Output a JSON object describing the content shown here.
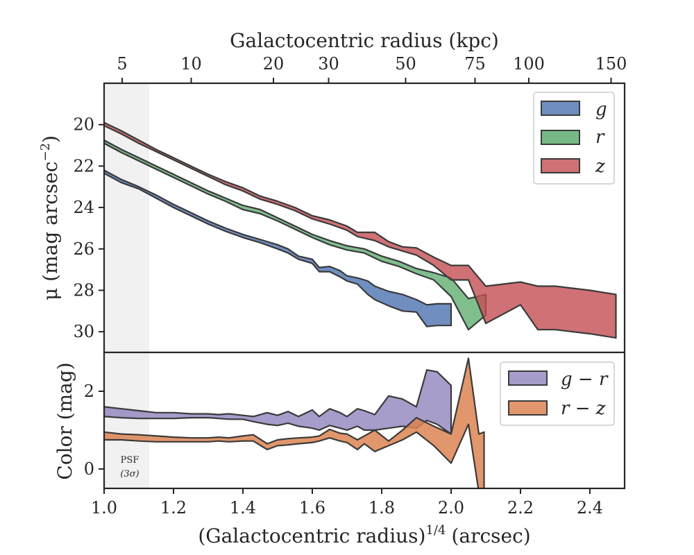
{
  "chart_data": [
    {
      "type": "area",
      "panel": "top",
      "xlabel": "(Galactocentric radius)$^{1/4}$ (arcsec)",
      "ylabel": "$\\mu$ (mag arcsec$^{-2}$)",
      "top_xlabel": "Galactocentric radius (kpc)",
      "top_xticks": [
        {
          "value": 5,
          "label": "5",
          "x": 1.052
        },
        {
          "value": 10,
          "label": "10",
          "x": 1.251
        },
        {
          "value": 20,
          "label": "20",
          "x": 1.488
        },
        {
          "value": 30,
          "label": "30",
          "x": 1.647
        },
        {
          "value": 50,
          "label": "50",
          "x": 1.869
        },
        {
          "value": 75,
          "label": "75",
          "x": 2.069
        },
        {
          "value": 100,
          "label": "100",
          "x": 2.224
        },
        {
          "value": 150,
          "label": "150",
          "x": 2.461
        }
      ],
      "xlim": [
        1.0,
        2.5
      ],
      "ylim": [
        31.0,
        18.0
      ],
      "y_inverted": true,
      "yticks": [
        20,
        22,
        24,
        26,
        28,
        30
      ],
      "xticks": [
        1.0,
        1.2,
        1.4,
        1.6,
        1.8,
        2.0,
        2.2,
        2.4
      ],
      "xtick_labels": [
        "1.0",
        "1.2",
        "1.4",
        "1.6",
        "1.8",
        "2.0",
        "2.2",
        "2.4"
      ],
      "shaded_region": {
        "x": [
          1.0,
          1.13
        ],
        "label": "PSF (3σ)",
        "color": "#f0f0f0"
      },
      "legend_location": "top-right",
      "series": [
        {
          "name": "g",
          "color": "#4c72b0",
          "x": [
            1.0,
            1.05,
            1.1,
            1.15,
            1.2,
            1.25,
            1.3,
            1.35,
            1.4,
            1.45,
            1.5,
            1.53,
            1.56,
            1.6,
            1.62,
            1.65,
            1.68,
            1.7,
            1.73,
            1.76,
            1.78,
            1.82,
            1.86,
            1.9,
            1.93,
            1.96,
            2.0
          ],
          "lower": [
            22.2,
            22.65,
            23.0,
            23.4,
            23.85,
            24.25,
            24.65,
            25.0,
            25.3,
            25.55,
            25.8,
            26.0,
            26.35,
            26.5,
            26.9,
            26.85,
            27.05,
            27.3,
            27.4,
            27.55,
            27.8,
            28.05,
            28.2,
            28.45,
            28.7,
            28.65,
            28.65
          ],
          "upper": [
            22.35,
            22.8,
            23.1,
            23.55,
            24.0,
            24.4,
            24.8,
            25.15,
            25.45,
            25.7,
            26.0,
            26.2,
            26.5,
            26.7,
            27.1,
            27.1,
            27.35,
            27.55,
            27.7,
            28.2,
            28.45,
            28.75,
            29.0,
            29.05,
            29.75,
            29.7,
            29.7
          ]
        },
        {
          "name": "r",
          "color": "#55a868",
          "x": [
            1.0,
            1.05,
            1.1,
            1.15,
            1.2,
            1.25,
            1.3,
            1.35,
            1.4,
            1.45,
            1.5,
            1.55,
            1.6,
            1.65,
            1.7,
            1.75,
            1.8,
            1.85,
            1.9,
            1.95,
            2.0,
            2.05,
            2.1
          ],
          "lower": [
            20.75,
            21.2,
            21.6,
            22.0,
            22.4,
            22.8,
            23.2,
            23.55,
            23.9,
            24.1,
            24.5,
            24.9,
            25.3,
            25.6,
            25.85,
            26.0,
            26.35,
            26.6,
            26.95,
            27.15,
            27.4,
            28.4,
            28.2
          ],
          "upper": [
            20.9,
            21.35,
            21.75,
            22.15,
            22.55,
            22.95,
            23.35,
            23.7,
            24.1,
            24.3,
            24.65,
            25.05,
            25.45,
            25.8,
            26.05,
            26.2,
            26.6,
            26.85,
            27.2,
            27.5,
            28.3,
            29.9,
            29.2
          ]
        },
        {
          "name": "z",
          "color": "#c44e52",
          "x": [
            1.0,
            1.05,
            1.1,
            1.15,
            1.2,
            1.25,
            1.3,
            1.35,
            1.4,
            1.45,
            1.5,
            1.55,
            1.6,
            1.65,
            1.7,
            1.73,
            1.78,
            1.82,
            1.86,
            1.9,
            1.95,
            2.0,
            2.05,
            2.1,
            2.2,
            2.25,
            2.3,
            2.4,
            2.475
          ],
          "lower": [
            19.9,
            20.3,
            20.75,
            21.2,
            21.6,
            22.0,
            22.4,
            22.75,
            23.05,
            23.45,
            23.7,
            24.0,
            24.4,
            24.6,
            24.9,
            25.2,
            25.2,
            25.65,
            25.9,
            25.95,
            26.4,
            26.8,
            26.8,
            27.8,
            27.6,
            27.8,
            27.8,
            28.0,
            28.2
          ],
          "upper": [
            20.05,
            20.45,
            20.9,
            21.3,
            21.7,
            22.1,
            22.5,
            22.9,
            23.2,
            23.6,
            23.85,
            24.15,
            24.55,
            24.8,
            25.1,
            25.4,
            25.6,
            25.9,
            26.1,
            26.3,
            26.8,
            27.5,
            27.5,
            29.6,
            28.7,
            29.9,
            29.9,
            30.1,
            30.3
          ]
        }
      ]
    },
    {
      "type": "area",
      "panel": "bottom",
      "xlabel": "(Galactocentric radius)$^{1/4}$ (arcsec)",
      "ylabel": "Color (mag)",
      "xlim": [
        1.0,
        2.5
      ],
      "ylim": [
        -0.5,
        3.0
      ],
      "yticks": [
        0,
        2
      ],
      "xticks": [
        1.0,
        1.2,
        1.4,
        1.6,
        1.8,
        2.0,
        2.2,
        2.4
      ],
      "xtick_labels": [
        "1.0",
        "1.2",
        "1.4",
        "1.6",
        "1.8",
        "2.0",
        "2.2",
        "2.4"
      ],
      "legend_location": "top-right",
      "series": [
        {
          "name": "g - r",
          "color": "#8172b3",
          "x": [
            1.0,
            1.05,
            1.1,
            1.15,
            1.2,
            1.25,
            1.3,
            1.33,
            1.36,
            1.4,
            1.43,
            1.47,
            1.5,
            1.53,
            1.56,
            1.6,
            1.62,
            1.65,
            1.68,
            1.7,
            1.73,
            1.75,
            1.78,
            1.82,
            1.86,
            1.9,
            1.93,
            1.96,
            2.0
          ],
          "lower": [
            1.35,
            1.32,
            1.3,
            1.3,
            1.3,
            1.32,
            1.32,
            1.3,
            1.28,
            1.28,
            1.22,
            1.15,
            1.12,
            1.18,
            1.1,
            1.05,
            1.0,
            1.12,
            1.05,
            1.0,
            1.1,
            1.0,
            1.0,
            1.05,
            1.1,
            1.05,
            1.25,
            1.15,
            0.9
          ],
          "upper": [
            1.6,
            1.55,
            1.5,
            1.45,
            1.45,
            1.42,
            1.42,
            1.4,
            1.42,
            1.38,
            1.35,
            1.45,
            1.38,
            1.48,
            1.35,
            1.52,
            1.35,
            1.55,
            1.45,
            1.35,
            1.55,
            1.5,
            1.4,
            1.88,
            1.8,
            1.6,
            2.55,
            2.5,
            2.15
          ]
        },
        {
          "name": "r - z",
          "color": "#dd8452",
          "x": [
            1.0,
            1.05,
            1.1,
            1.15,
            1.2,
            1.25,
            1.3,
            1.33,
            1.36,
            1.4,
            1.43,
            1.47,
            1.5,
            1.53,
            1.56,
            1.6,
            1.62,
            1.65,
            1.68,
            1.7,
            1.73,
            1.75,
            1.78,
            1.82,
            1.86,
            1.9,
            1.95,
            2.0,
            2.05,
            2.08,
            2.095
          ],
          "lower": [
            0.75,
            0.75,
            0.72,
            0.7,
            0.7,
            0.7,
            0.7,
            0.72,
            0.7,
            0.72,
            0.72,
            0.5,
            0.6,
            0.62,
            0.65,
            0.68,
            0.72,
            0.8,
            0.72,
            0.68,
            0.5,
            0.65,
            0.45,
            0.6,
            0.75,
            0.95,
            0.6,
            0.15,
            1.15,
            -0.6,
            -0.6
          ],
          "upper": [
            0.95,
            0.9,
            0.88,
            0.85,
            0.82,
            0.8,
            0.8,
            0.82,
            0.8,
            0.85,
            0.88,
            0.65,
            0.75,
            0.78,
            0.8,
            0.82,
            0.85,
            1.02,
            0.92,
            0.9,
            0.75,
            0.85,
            1.0,
            0.72,
            1.0,
            1.32,
            1.1,
            0.9,
            2.85,
            0.9,
            0.95
          ]
        }
      ]
    }
  ],
  "figure": {
    "xlabel_main": "(Galactocentric radius)",
    "xlabel_exp": "1/4",
    "xlabel_unit": "(arcsec)",
    "top_xlabel": "Galactocentric radius (kpc)",
    "ylabel_top_main": "μ (mag arcsec",
    "ylabel_top_exp": "−2",
    "ylabel_top_close": ")",
    "ylabel_bottom": "Color (mag)",
    "psf_line1": "PSF",
    "psf_line2": "(3σ)",
    "legend_top": [
      "g",
      "r",
      "z"
    ],
    "legend_bottom": [
      "g − r",
      "r − z"
    ]
  }
}
